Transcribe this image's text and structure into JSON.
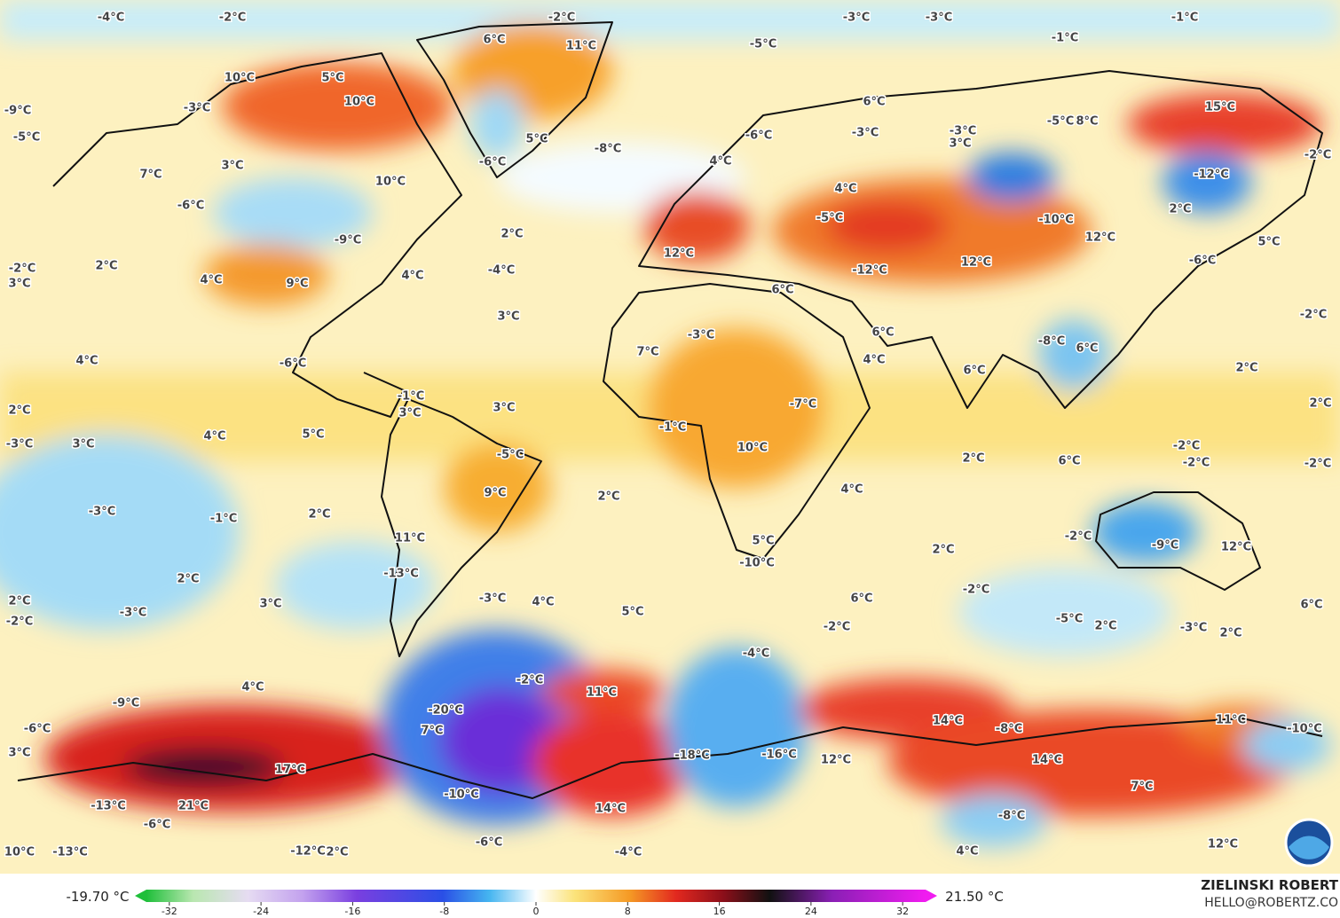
{
  "labels": [
    "-4°C",
    "-2°C",
    "-2°C",
    "-3°C",
    "-3°C",
    "-1°C",
    "6°C",
    "11°C",
    "-5°C",
    "-1°C",
    "10°C",
    "5°C",
    "-3°C",
    "10°C",
    "-9°C",
    "-5°C",
    "5°C",
    "-8°C",
    "-6°C",
    "6°C",
    "-3°C",
    "-6°C",
    "-5°C",
    "8°C",
    "-3°C",
    "3°C",
    "15°C",
    "-2°C",
    "4°C",
    "7°C",
    "3°C",
    "10°C",
    "-12°C",
    "4°C",
    "-6°C",
    "-5°C",
    "-10°C",
    "2°C",
    "12°C",
    "2°C",
    "-9°C",
    "5°C",
    "12°C",
    "12°C",
    "-12°C",
    "-6°C",
    "-2°C",
    "3°C",
    "2°C",
    "4°C",
    "9°C",
    "-4°C",
    "4°C",
    "6°C",
    "3°C",
    "-2°C",
    "-3°C",
    "6°C",
    "-8°C",
    "6°C",
    "7°C",
    "4°C",
    "-6°C",
    "4°C",
    "6°C",
    "2°C",
    "-1°C",
    "3°C",
    "3°C",
    "-7°C",
    "2°C",
    "2°C",
    "-3°C",
    "3°C",
    "4°C",
    "5°C",
    "-1°C",
    "10°C",
    "2°C",
    "-2°C",
    "-2°C",
    "-2°C",
    "6°C",
    "-5°C",
    "9°C",
    "2°C",
    "4°C",
    "-3°C",
    "-1°C",
    "2°C",
    "11°C",
    "5°C",
    "-10°C",
    "-2°C",
    "-9°C",
    "12°C",
    "2°C",
    "-13°C",
    "2°C",
    "-2°C",
    "2°C",
    "-2°C",
    "-3°C",
    "3°C",
    "-3°C",
    "4°C",
    "5°C",
    "6°C",
    "-5°C",
    "2°C",
    "-3°C",
    "2°C",
    "-2°C",
    "6°C",
    "-4°C",
    "4°C",
    "-2°C",
    "11°C",
    "-9°C",
    "-20°C",
    "14°C",
    "11°C",
    "-8°C",
    "-6°C",
    "7°C",
    "-10°C",
    "3°C",
    "17°C",
    "-18°C",
    "-16°C",
    "12°C",
    "14°C",
    "7°C",
    "-13°C",
    "21°C",
    "14°C",
    "-10°C",
    "-8°C",
    "-6°C",
    "-6°C",
    "12°C",
    "10°C",
    "-13°C",
    "-12°C",
    "2°C",
    "-4°C",
    "4°C"
  ],
  "colorbar": {
    "min_label": "-19.70 °C",
    "max_label": "21.50 °C",
    "lim": [
      -34,
      34
    ],
    "ticks": [
      -32,
      -24,
      -16,
      -8,
      0,
      8,
      16,
      24,
      32
    ]
  },
  "credits": {
    "author": "ZIELINSKI ROBERT",
    "email": "HELLO@ROBERTZ.CO"
  }
}
